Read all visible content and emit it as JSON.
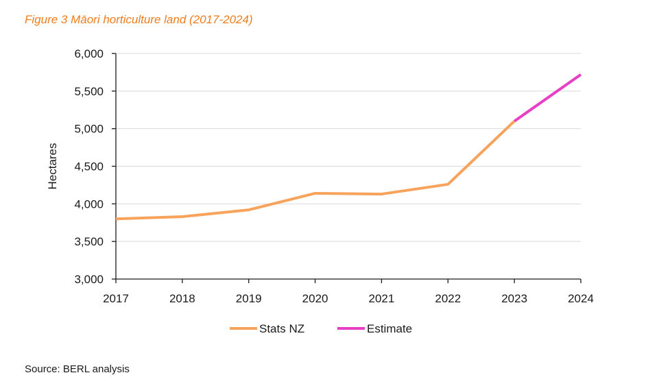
{
  "figure": {
    "title": "Figure 3 Māori horticulture land (2017-2024)",
    "source": "Source: BERL analysis"
  },
  "chart_data": {
    "type": "line",
    "title": "Figure 3 Māori horticulture land (2017-2024)",
    "xlabel": "",
    "ylabel": "Hectares",
    "x": [
      2017,
      2018,
      2019,
      2020,
      2021,
      2022,
      2023,
      2024
    ],
    "x_tick_labels": [
      "2017",
      "2018",
      "2019",
      "2020",
      "2021",
      "2022",
      "2023",
      "2024"
    ],
    "ylim": [
      3000,
      6000
    ],
    "y_ticks": [
      3000,
      3500,
      4000,
      4500,
      5000,
      5500,
      6000
    ],
    "y_tick_labels": [
      "3,000",
      "3,500",
      "4,000",
      "4,500",
      "5,000",
      "5,500",
      "6,000"
    ],
    "grid": true,
    "legend_position": "bottom",
    "series": [
      {
        "name": "Stats NZ",
        "color": "#f7a35c",
        "points": [
          [
            2017,
            3800
          ],
          [
            2018,
            3830
          ],
          [
            2019,
            3920
          ],
          [
            2020,
            4140
          ],
          [
            2021,
            4130
          ],
          [
            2022,
            4260
          ],
          [
            2023,
            5100
          ]
        ]
      },
      {
        "name": "Estimate",
        "color": "#e83fc4",
        "points": [
          [
            2023,
            5100
          ],
          [
            2024,
            5720
          ]
        ]
      }
    ]
  }
}
